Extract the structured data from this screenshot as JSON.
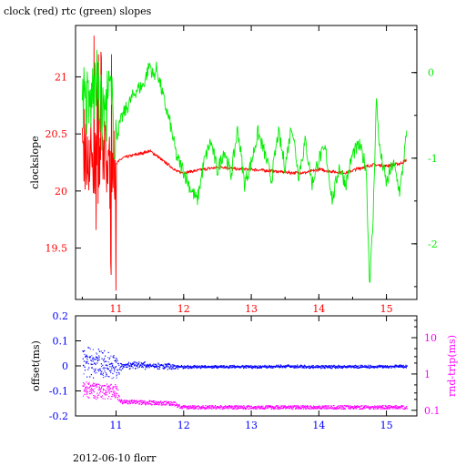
{
  "title": "clock (red) rtc (green) slopes",
  "footer": "2012-06-10 florr",
  "colors": {
    "red": "#ff0000",
    "green": "#00ee00",
    "blue": "#0000ff",
    "magenta": "#ff00ff",
    "axis": "#000000"
  },
  "chart_data": [
    {
      "type": "line",
      "title": "clock (red) rtc (green) slopes",
      "x_ticks": [
        "11",
        "12",
        "13",
        "14",
        "15"
      ],
      "xlim": [
        10.4,
        15.45
      ],
      "ylabel_left": "clockslope",
      "y_left_ticks": [
        "19.5",
        "20",
        "20.5",
        "21"
      ],
      "ylim_left": [
        19.05,
        21.45
      ],
      "y_right_ticks": [
        "0",
        "-1",
        "-2"
      ],
      "ylim_right": [
        -2.65,
        0.55
      ],
      "grid": false,
      "series": [
        {
          "name": "clock",
          "color": "red",
          "axis": "left",
          "x": [
            10.5,
            10.6,
            10.7,
            10.8,
            10.9,
            11.0,
            11.1,
            11.3,
            11.5,
            11.6,
            11.7,
            11.8,
            11.9,
            12.0,
            12.2,
            12.4,
            12.6,
            12.8,
            13.0,
            13.2,
            13.4,
            13.6,
            13.8,
            14.0,
            14.2,
            14.4,
            14.6,
            14.8,
            15.0,
            15.2,
            15.3
          ],
          "values": [
            20.25,
            20.33,
            20.22,
            20.3,
            20.18,
            20.24,
            20.29,
            20.32,
            20.35,
            20.31,
            20.26,
            20.22,
            20.17,
            20.16,
            20.18,
            20.2,
            20.21,
            20.19,
            20.19,
            20.18,
            20.17,
            20.16,
            20.16,
            20.19,
            20.17,
            20.16,
            20.2,
            20.23,
            20.22,
            20.24,
            20.27
          ]
        },
        {
          "name": "rtc",
          "color": "green",
          "axis": "right",
          "x": [
            10.5,
            10.6,
            10.7,
            10.8,
            10.9,
            11.0,
            11.1,
            11.2,
            11.3,
            11.4,
            11.5,
            11.55,
            11.6,
            11.7,
            11.8,
            11.9,
            12.0,
            12.1,
            12.2,
            12.3,
            12.4,
            12.5,
            12.6,
            12.7,
            12.8,
            12.9,
            13.0,
            13.1,
            13.2,
            13.3,
            13.4,
            13.5,
            13.6,
            13.7,
            13.8,
            13.9,
            14.0,
            14.1,
            14.2,
            14.3,
            14.4,
            14.5,
            14.6,
            14.7,
            14.75,
            14.8,
            14.85,
            14.9,
            15.0,
            15.1,
            15.2,
            15.3
          ],
          "values": [
            -0.2,
            -0.45,
            -0.1,
            -0.55,
            -0.25,
            -0.75,
            -0.5,
            -0.35,
            -0.2,
            -0.15,
            0.1,
            -0.05,
            0.05,
            -0.3,
            -0.6,
            -1.0,
            -1.15,
            -1.35,
            -1.5,
            -1.05,
            -0.8,
            -1.15,
            -0.9,
            -1.2,
            -0.65,
            -1.3,
            -1.05,
            -0.7,
            -0.95,
            -1.25,
            -0.7,
            -1.1,
            -0.6,
            -1.2,
            -0.8,
            -1.3,
            -1.0,
            -0.9,
            -1.5,
            -1.1,
            -1.3,
            -0.95,
            -0.85,
            -1.1,
            -2.45,
            -1.8,
            -0.3,
            -0.9,
            -1.3,
            -1.05,
            -1.4,
            -0.7
          ]
        }
      ]
    },
    {
      "type": "scatter",
      "x_ticks": [
        "11",
        "12",
        "13",
        "14",
        "15"
      ],
      "xlim": [
        10.4,
        15.45
      ],
      "ylabel_left": "offset(ms)",
      "y_left_ticks": [
        "0.2",
        "0.1",
        "0",
        "-0.1",
        "-0.2"
      ],
      "ylim_left": [
        -0.2,
        0.2
      ],
      "ylabel_right": "rnd-trip(ms)",
      "y_right_ticks": [
        "10",
        "1",
        "0.1"
      ],
      "y_right_scale": "log",
      "ylim_right": [
        0.07,
        40
      ],
      "grid": false,
      "series": [
        {
          "name": "offset",
          "color": "blue",
          "axis": "left",
          "x": [
            10.5,
            10.75,
            11.0,
            11.1,
            11.5,
            11.8,
            12.0,
            12.5,
            13.0,
            13.5,
            14.0,
            14.5,
            15.0,
            15.3
          ],
          "values": [
            0.02,
            0.01,
            0.0,
            0.005,
            0.003,
            0.0,
            -0.002,
            -0.001,
            -0.002,
            0.0,
            -0.002,
            -0.001,
            -0.001,
            0.0
          ],
          "spread": [
            0.06,
            0.06,
            0.05,
            0.015,
            0.015,
            0.012,
            0.006,
            0.006,
            0.006,
            0.006,
            0.006,
            0.006,
            0.006,
            0.006
          ]
        },
        {
          "name": "rnd-trip",
          "color": "magenta",
          "axis": "right",
          "x": [
            10.5,
            10.75,
            11.0,
            11.05,
            11.5,
            11.85,
            11.95,
            12.5,
            13.0,
            13.5,
            14.0,
            14.5,
            15.0,
            15.3
          ],
          "values": [
            0.35,
            0.3,
            0.3,
            0.17,
            0.16,
            0.15,
            0.12,
            0.12,
            0.12,
            0.12,
            0.12,
            0.12,
            0.12,
            0.12
          ],
          "spread": [
            0.5,
            0.5,
            0.5,
            0.12,
            0.12,
            0.12,
            0.1,
            0.1,
            0.1,
            0.1,
            0.1,
            0.1,
            0.1,
            0.1
          ]
        }
      ]
    }
  ]
}
